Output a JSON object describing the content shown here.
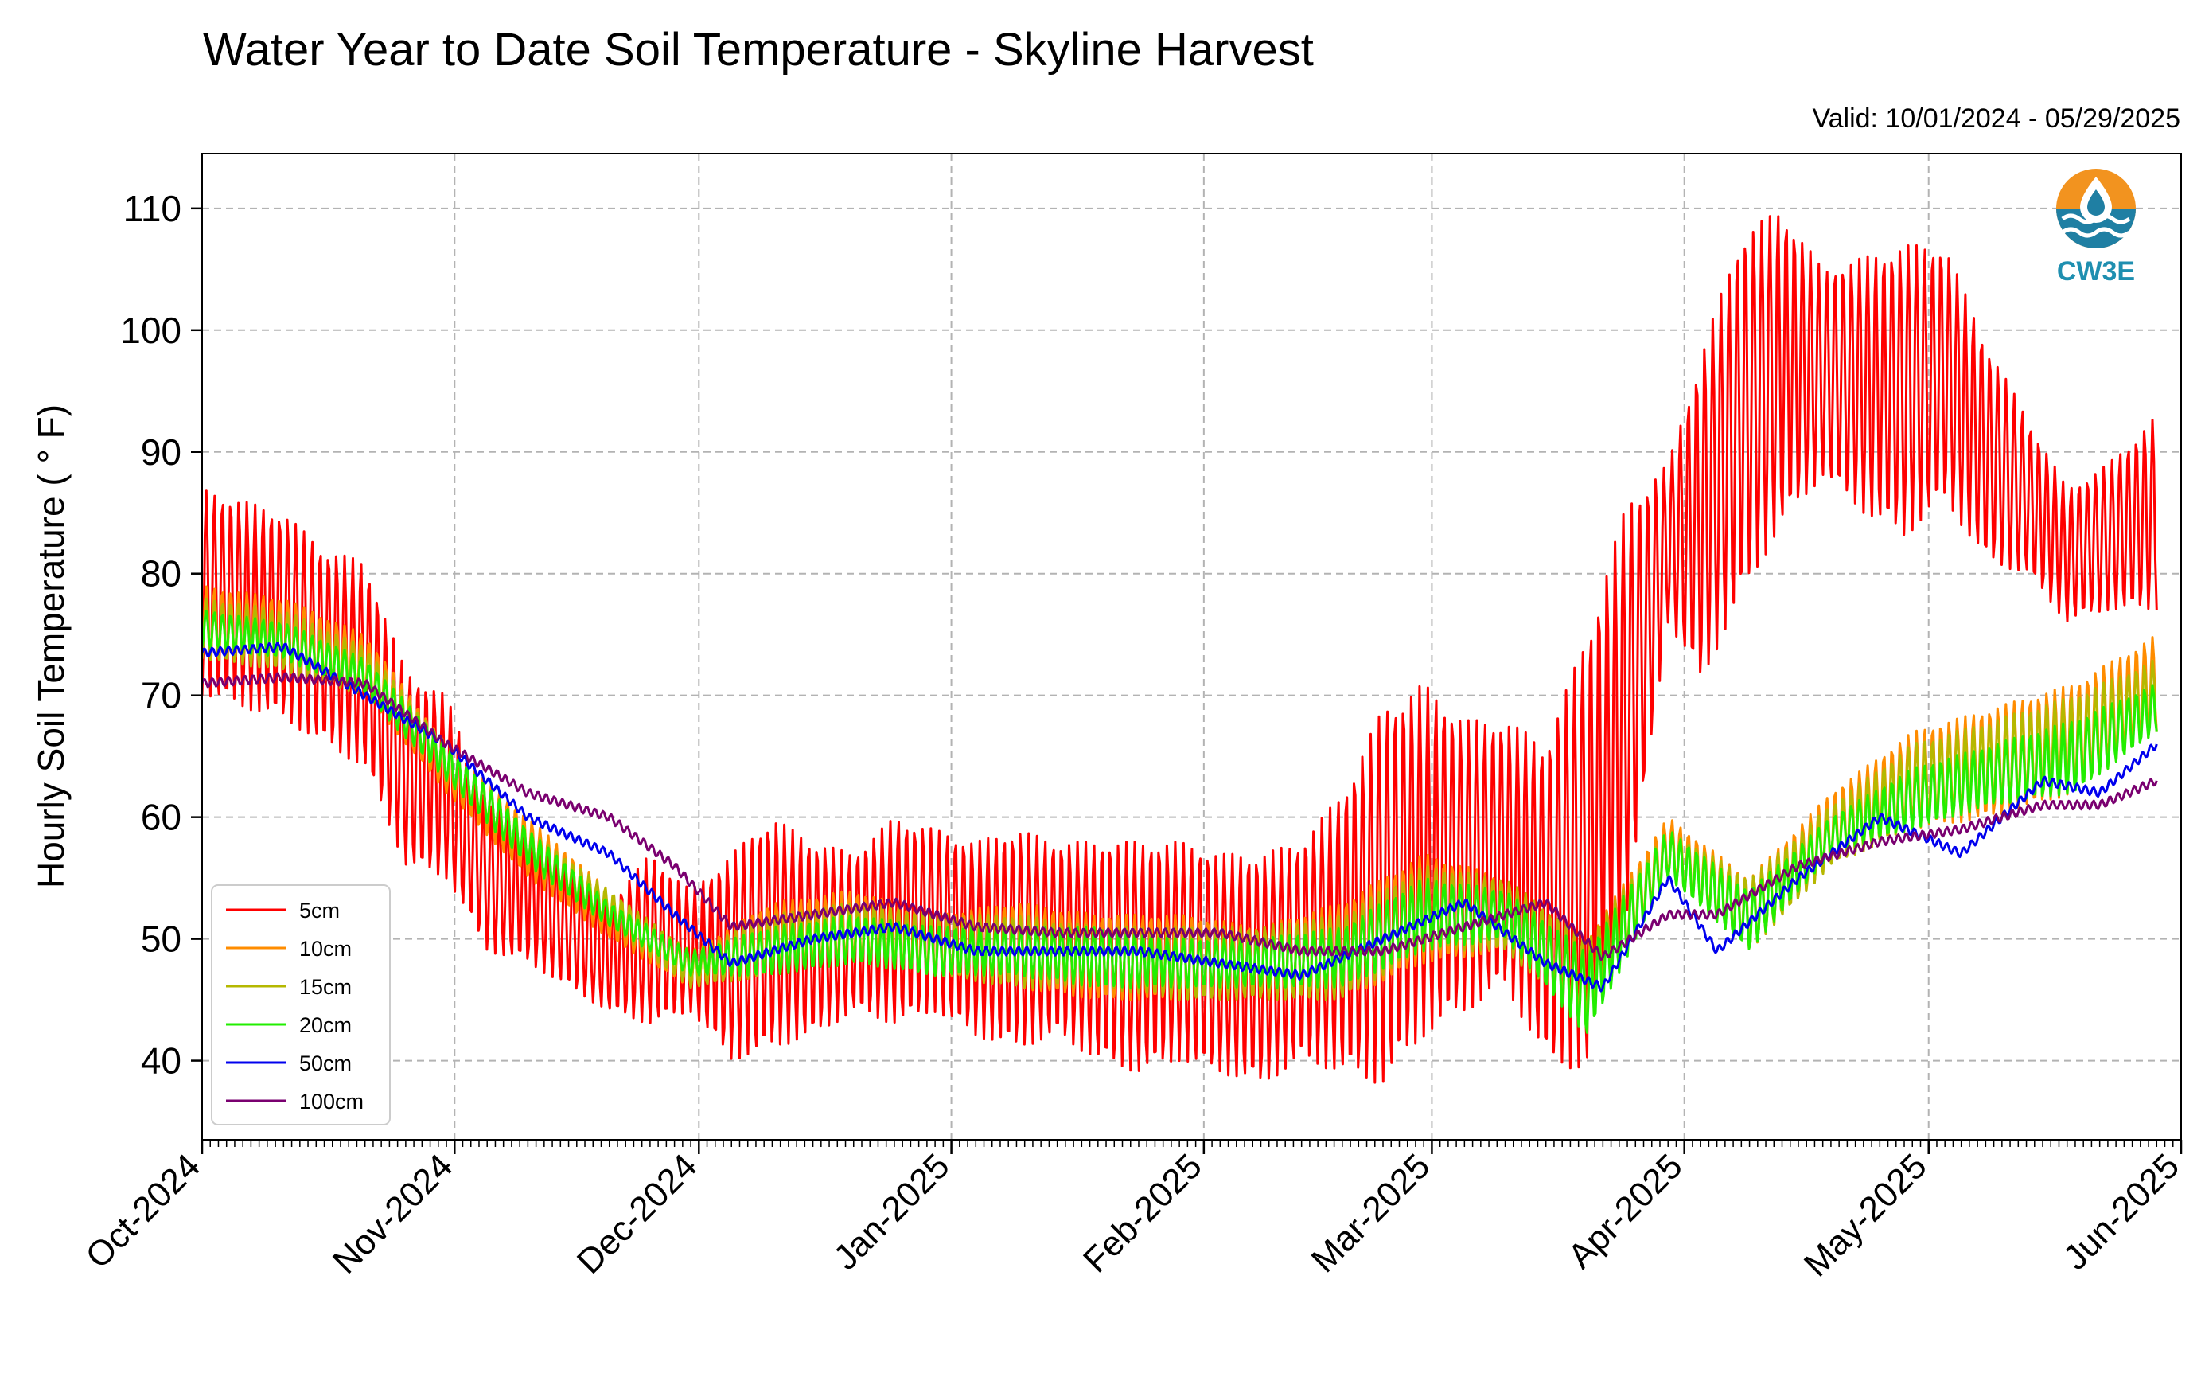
{
  "chart_data": {
    "type": "line",
    "title": "Water Year to Date Soil Temperature - Skyline Harvest",
    "subtitle": "Valid: 10/01/2024 - 05/29/2025",
    "ylabel": "Hourly Soil Temperature ( ° F)",
    "xlabel": "",
    "xlim": [
      "2024-10-01",
      "2025-06-01"
    ],
    "ylim": [
      33.5,
      114.5
    ],
    "x_ticks": [
      "Oct-2024",
      "Nov-2024",
      "Dec-2024",
      "Jan-2025",
      "Feb-2025",
      "Mar-2025",
      "Apr-2025",
      "May-2025",
      "Jun-2025"
    ],
    "y_ticks": [
      40,
      50,
      60,
      70,
      80,
      90,
      100,
      110
    ],
    "grid": true,
    "legend_position": "lower-left",
    "logo": "CW3E",
    "series": [
      {
        "name": "5cm",
        "color": "#ff0000",
        "x": [
          "2024-10-01",
          "2024-10-06",
          "2024-10-11",
          "2024-10-16",
          "2024-10-21",
          "2024-10-26",
          "2024-10-31",
          "2024-11-05",
          "2024-11-10",
          "2024-11-15",
          "2024-11-20",
          "2024-11-25",
          "2024-11-30",
          "2024-12-05",
          "2024-12-10",
          "2024-12-15",
          "2024-12-20",
          "2024-12-25",
          "2024-12-30",
          "2025-01-04",
          "2025-01-09",
          "2025-01-14",
          "2025-01-19",
          "2025-01-24",
          "2025-01-29",
          "2025-02-03",
          "2025-02-08",
          "2025-02-13",
          "2025-02-18",
          "2025-02-23",
          "2025-02-28",
          "2025-03-05",
          "2025-03-10",
          "2025-03-15",
          "2025-03-20",
          "2025-03-25",
          "2025-03-30",
          "2025-04-03",
          "2025-04-08",
          "2025-04-13",
          "2025-04-18",
          "2025-04-23",
          "2025-04-28",
          "2025-05-03",
          "2025-05-08",
          "2025-05-13",
          "2025-05-18",
          "2025-05-23",
          "2025-05-29"
        ],
        "y_min": [
          70,
          69,
          68,
          66,
          64,
          56,
          55,
          49,
          48,
          46,
          44,
          43,
          44,
          40,
          41,
          42,
          44,
          43,
          44,
          42,
          41,
          42,
          40,
          39,
          40,
          39,
          38,
          40,
          39,
          38,
          42,
          44,
          46,
          40,
          39,
          52,
          76,
          71,
          78,
          84,
          88,
          85,
          83,
          86,
          81,
          80,
          76,
          77,
          77
        ],
        "y_max": [
          87,
          86,
          85,
          82,
          81,
          72,
          70,
          61,
          60,
          56,
          53,
          57,
          54,
          57,
          60,
          58,
          57,
          60,
          59,
          58,
          59,
          58,
          58,
          58,
          58,
          57,
          57,
          58,
          62,
          69,
          71,
          68,
          68,
          66,
          75,
          86,
          89,
          98,
          108,
          110,
          105,
          106,
          107,
          107,
          99,
          93,
          87,
          89,
          93
        ]
      },
      {
        "name": "10cm",
        "color": "#ff8c00",
        "x": [
          "2024-10-01",
          "2024-10-11",
          "2024-10-21",
          "2024-10-31",
          "2024-11-10",
          "2024-11-20",
          "2024-11-30",
          "2024-12-10",
          "2024-12-20",
          "2024-12-30",
          "2025-01-09",
          "2025-01-19",
          "2025-01-29",
          "2025-02-08",
          "2025-02-18",
          "2025-02-28",
          "2025-03-10",
          "2025-03-20",
          "2025-03-30",
          "2025-04-09",
          "2025-04-19",
          "2025-04-29",
          "2025-05-09",
          "2025-05-19",
          "2025-05-29"
        ],
        "y_min": [
          73,
          72,
          70,
          62,
          55,
          50,
          46,
          47,
          48,
          47,
          46,
          45,
          45,
          45,
          45,
          48,
          49,
          43,
          55,
          49,
          56,
          59,
          60,
          62,
          67
        ],
        "y_max": [
          79,
          78,
          75,
          66,
          60,
          54,
          49,
          53,
          54,
          52,
          53,
          52,
          52,
          51,
          53,
          57,
          55,
          50,
          60,
          55,
          62,
          67,
          69,
          71,
          75
        ]
      },
      {
        "name": "15cm",
        "color": "#b5b800",
        "x": [
          "2024-10-01",
          "2024-10-11",
          "2024-10-21",
          "2024-10-31",
          "2024-11-10",
          "2024-11-20",
          "2024-11-30",
          "2024-12-10",
          "2024-12-20",
          "2024-12-30",
          "2025-01-09",
          "2025-01-19",
          "2025-01-29",
          "2025-02-08",
          "2025-02-18",
          "2025-02-28",
          "2025-03-10",
          "2025-03-20",
          "2025-03-30",
          "2025-04-09",
          "2025-04-19",
          "2025-04-29",
          "2025-05-09",
          "2025-05-19",
          "2025-05-29"
        ],
        "y_min": [
          73,
          72,
          70,
          63,
          56,
          51,
          46,
          47,
          48,
          47,
          46,
          46,
          45,
          45,
          45,
          49,
          49,
          43,
          55,
          49,
          56,
          59,
          61,
          62,
          67
        ],
        "y_max": [
          78,
          77,
          74,
          66,
          59,
          54,
          49,
          52,
          53,
          52,
          52,
          51,
          51,
          51,
          52,
          56,
          55,
          50,
          59,
          55,
          61,
          66,
          68,
          70,
          73
        ]
      },
      {
        "name": "20cm",
        "color": "#22ee00",
        "x": [
          "2024-10-01",
          "2024-10-11",
          "2024-10-21",
          "2024-10-31",
          "2024-11-10",
          "2024-11-20",
          "2024-11-30",
          "2024-12-10",
          "2024-12-20",
          "2024-12-30",
          "2025-01-09",
          "2025-01-19",
          "2025-01-29",
          "2025-02-08",
          "2025-02-18",
          "2025-02-28",
          "2025-03-10",
          "2025-03-20",
          "2025-03-30",
          "2025-04-09",
          "2025-04-19",
          "2025-04-29",
          "2025-05-09",
          "2025-05-19",
          "2025-05-29"
        ],
        "y_min": [
          74,
          73,
          70,
          63,
          56,
          51,
          47,
          47,
          48,
          47,
          47,
          46,
          46,
          46,
          46,
          49,
          50,
          42,
          55,
          49,
          57,
          59,
          61,
          62,
          67
        ],
        "y_max": [
          77,
          76,
          73,
          66,
          59,
          53,
          49,
          51,
          52,
          51,
          51,
          51,
          50,
          50,
          51,
          55,
          54,
          49,
          59,
          54,
          60,
          64,
          66,
          68,
          71
        ]
      },
      {
        "name": "50cm",
        "color": "#0000ee",
        "x": [
          "2024-10-01",
          "2024-10-11",
          "2024-10-21",
          "2024-10-31",
          "2024-11-10",
          "2024-11-20",
          "2024-11-28",
          "2024-12-05",
          "2024-12-15",
          "2024-12-25",
          "2025-01-04",
          "2025-01-14",
          "2025-01-24",
          "2025-02-03",
          "2025-02-13",
          "2025-02-23",
          "2025-03-05",
          "2025-03-15",
          "2025-03-22",
          "2025-03-30",
          "2025-04-05",
          "2025-04-15",
          "2025-04-25",
          "2025-05-05",
          "2025-05-15",
          "2025-05-22",
          "2025-05-29"
        ],
        "y": [
          73.5,
          74,
          70,
          66,
          60,
          57,
          52,
          48,
          50,
          51,
          49,
          49,
          49,
          48,
          47,
          50,
          53,
          48,
          46,
          55,
          49,
          55,
          60,
          57,
          63,
          62,
          66
        ]
      },
      {
        "name": "100cm",
        "color": "#7a0070",
        "x": [
          "2024-10-01",
          "2024-10-11",
          "2024-10-21",
          "2024-10-31",
          "2024-11-10",
          "2024-11-20",
          "2024-11-28",
          "2024-12-05",
          "2024-12-15",
          "2024-12-25",
          "2025-01-04",
          "2025-01-14",
          "2025-01-24",
          "2025-02-03",
          "2025-02-13",
          "2025-02-23",
          "2025-03-05",
          "2025-03-15",
          "2025-03-22",
          "2025-03-30",
          "2025-04-05",
          "2025-04-15",
          "2025-04-25",
          "2025-05-05",
          "2025-05-15",
          "2025-05-22",
          "2025-05-29"
        ],
        "y": [
          71,
          71.5,
          71,
          66,
          62,
          60,
          56,
          51,
          52,
          53,
          51,
          50.5,
          50.5,
          50.5,
          49,
          49,
          51,
          53,
          48.5,
          52,
          52,
          56,
          58,
          59,
          61,
          61,
          63
        ]
      }
    ]
  }
}
